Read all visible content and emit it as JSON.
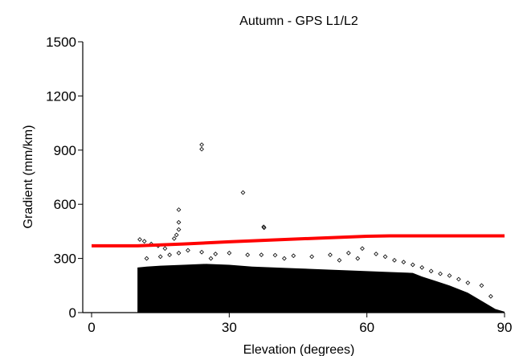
{
  "chart_data": {
    "type": "scatter",
    "title": "Autumn - GPS L1/L2",
    "xlabel": "Elevation (degrees)",
    "ylabel": "Gradient (mm/km)",
    "xlim": [
      0,
      90
    ],
    "ylim": [
      0,
      1500
    ],
    "xticks": [
      0,
      30,
      60,
      90
    ],
    "yticks": [
      0,
      300,
      600,
      900,
      1200,
      1500
    ],
    "grid": false,
    "legend": "none",
    "marker_color": "#000000",
    "threshold_color": "#ff0000",
    "scatter_envelope": [
      [
        10,
        250
      ],
      [
        12,
        255
      ],
      [
        15,
        260
      ],
      [
        20,
        265
      ],
      [
        25,
        270
      ],
      [
        30,
        265
      ],
      [
        35,
        255
      ],
      [
        40,
        250
      ],
      [
        45,
        245
      ],
      [
        50,
        240
      ],
      [
        55,
        235
      ],
      [
        60,
        230
      ],
      [
        65,
        225
      ],
      [
        70,
        220
      ],
      [
        72,
        200
      ],
      [
        75,
        175
      ],
      [
        78,
        150
      ],
      [
        80,
        130
      ],
      [
        82,
        110
      ],
      [
        84,
        80
      ],
      [
        86,
        50
      ],
      [
        88,
        20
      ],
      [
        90,
        5
      ]
    ],
    "outliers": [
      [
        24,
        930
      ],
      [
        24,
        905
      ],
      [
        33,
        665
      ],
      [
        37.5,
        475
      ],
      [
        37.6,
        470
      ],
      [
        19,
        570
      ],
      [
        19,
        500
      ],
      [
        19,
        460
      ],
      [
        18.5,
        430
      ],
      [
        18,
        410
      ],
      [
        10.5,
        405
      ],
      [
        11.5,
        395
      ],
      [
        13,
        380
      ],
      [
        14.5,
        370
      ],
      [
        16,
        355
      ],
      [
        21,
        345
      ],
      [
        24,
        335
      ],
      [
        27,
        325
      ],
      [
        30,
        330
      ],
      [
        34,
        320
      ],
      [
        37,
        320
      ],
      [
        40,
        318
      ],
      [
        44,
        315
      ],
      [
        48,
        310
      ],
      [
        52,
        320
      ],
      [
        56,
        330
      ],
      [
        59,
        355
      ],
      [
        62,
        325
      ],
      [
        64,
        310
      ],
      [
        66,
        290
      ],
      [
        70,
        265
      ],
      [
        72,
        250
      ],
      [
        74,
        230
      ],
      [
        76,
        215
      ],
      [
        78,
        205
      ],
      [
        80,
        185
      ],
      [
        82,
        165
      ],
      [
        85,
        150
      ],
      [
        87,
        90
      ],
      [
        12,
        300
      ],
      [
        15,
        310
      ],
      [
        17,
        320
      ],
      [
        19,
        330
      ],
      [
        26,
        300
      ],
      [
        42,
        300
      ],
      [
        54,
        290
      ],
      [
        58,
        300
      ],
      [
        68,
        280
      ]
    ],
    "threshold_line": {
      "x": [
        0,
        10,
        20,
        30,
        40,
        50,
        60,
        65,
        70,
        80,
        90
      ],
      "y": [
        370,
        370,
        380,
        392,
        403,
        413,
        423,
        425,
        425,
        425,
        425
      ]
    }
  }
}
